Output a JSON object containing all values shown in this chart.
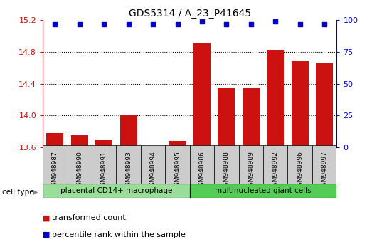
{
  "title": "GDS5314 / A_23_P41645",
  "samples": [
    "GSM948987",
    "GSM948990",
    "GSM948991",
    "GSM948993",
    "GSM948994",
    "GSM948995",
    "GSM948986",
    "GSM948988",
    "GSM948989",
    "GSM948992",
    "GSM948996",
    "GSM948997"
  ],
  "transformed_counts": [
    13.78,
    13.75,
    13.7,
    14.0,
    13.57,
    13.68,
    14.92,
    14.34,
    14.35,
    14.83,
    14.68,
    14.67
  ],
  "percentile_ranks": [
    97,
    97,
    97,
    97,
    97,
    97,
    99,
    97,
    97,
    99,
    97,
    97
  ],
  "group_labels": [
    "placental CD14+ macrophage",
    "multinucleated giant cells"
  ],
  "group_split": 6,
  "group_color1": "#99dd99",
  "group_color2": "#55cc55",
  "bar_color": "#cc1111",
  "dot_color": "#0000cc",
  "ylim_left": [
    13.6,
    15.2
  ],
  "yticks_left": [
    13.6,
    14.0,
    14.4,
    14.8,
    15.2
  ],
  "ylim_right": [
    0,
    100
  ],
  "yticks_right": [
    0,
    25,
    50,
    75,
    100
  ],
  "gridlines_at": [
    14.0,
    14.4,
    14.8
  ],
  "label_color_left": "#cc1111",
  "label_color_right": "#0000cc",
  "sample_box_color": "#cccccc",
  "cell_type_label": "cell type",
  "legend_red_label": "transformed count",
  "legend_blue_label": "percentile rank within the sample"
}
